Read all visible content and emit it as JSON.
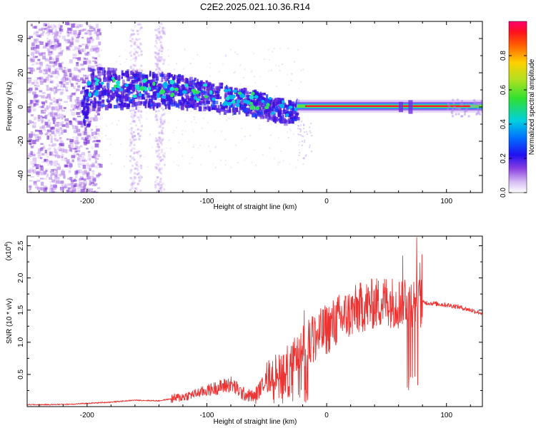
{
  "chart_data": [
    {
      "type": "heatmap",
      "title": "C2E2.2025.021.10.36.R14",
      "xlabel": "Height of straight line (km)",
      "ylabel": "Frequency (Hz)",
      "xlim": [
        -250,
        130
      ],
      "ylim": [
        -50,
        50
      ],
      "xticks": [
        -200,
        -100,
        0,
        100
      ],
      "yticks": [
        -40,
        -20,
        0,
        20,
        40
      ],
      "colorbar": {
        "label": "Normalized spectral amplitude",
        "range": [
          0,
          1
        ],
        "ticks": [
          "0.0",
          "0.2",
          "0.4",
          "0.6",
          "0.8"
        ]
      },
      "centroid_track": [
        {
          "x": -200,
          "y": 12
        },
        {
          "x": -180,
          "y": 12
        },
        {
          "x": -160,
          "y": 11
        },
        {
          "x": -140,
          "y": 11
        },
        {
          "x": -120,
          "y": 10
        },
        {
          "x": -100,
          "y": 8
        },
        {
          "x": -80,
          "y": 5
        },
        {
          "x": -60,
          "y": 3
        },
        {
          "x": -40,
          "y": -1
        },
        {
          "x": -30,
          "y": -2
        },
        {
          "x": -20,
          "y": 0
        },
        {
          "x": 0,
          "y": 0.5
        },
        {
          "x": 50,
          "y": 0.5
        },
        {
          "x": 100,
          "y": 0.5
        },
        {
          "x": 130,
          "y": 0.5
        }
      ]
    },
    {
      "type": "line",
      "xlabel": "Height of straight line (km)",
      "ylabel": "SNR (10 * v/v)",
      "y_multiplier": "(x10",
      "y_multiplier_exp": "4",
      "y_multiplier_close": ")",
      "xlim": [
        -250,
        130
      ],
      "ylim": [
        0,
        2.65
      ],
      "xticks": [
        -200,
        -100,
        0,
        100
      ],
      "yticks": [
        "0.5",
        "1.0",
        "1.5",
        "2.0",
        "2.5"
      ],
      "color": "#ee3333",
      "series": [
        {
          "x": [
            -250,
            -230,
            -210,
            -200,
            -180,
            -160,
            -140,
            -120,
            -100,
            -90,
            -80,
            -70,
            -60,
            -50,
            -40,
            -30,
            -20,
            -10,
            0,
            10,
            20,
            30,
            40,
            50,
            60,
            65,
            70,
            75,
            80,
            90,
            100,
            110,
            120,
            130
          ],
          "y": [
            0.03,
            0.03,
            0.04,
            0.05,
            0.07,
            0.1,
            0.09,
            0.15,
            0.25,
            0.3,
            0.35,
            0.2,
            0.15,
            0.45,
            0.6,
            0.75,
            0.9,
            1.05,
            1.2,
            1.35,
            1.45,
            1.55,
            1.6,
            1.65,
            1.6,
            1.7,
            1.65,
            1.6,
            1.62,
            1.6,
            1.58,
            1.55,
            1.5,
            1.45
          ]
        }
      ]
    }
  ]
}
